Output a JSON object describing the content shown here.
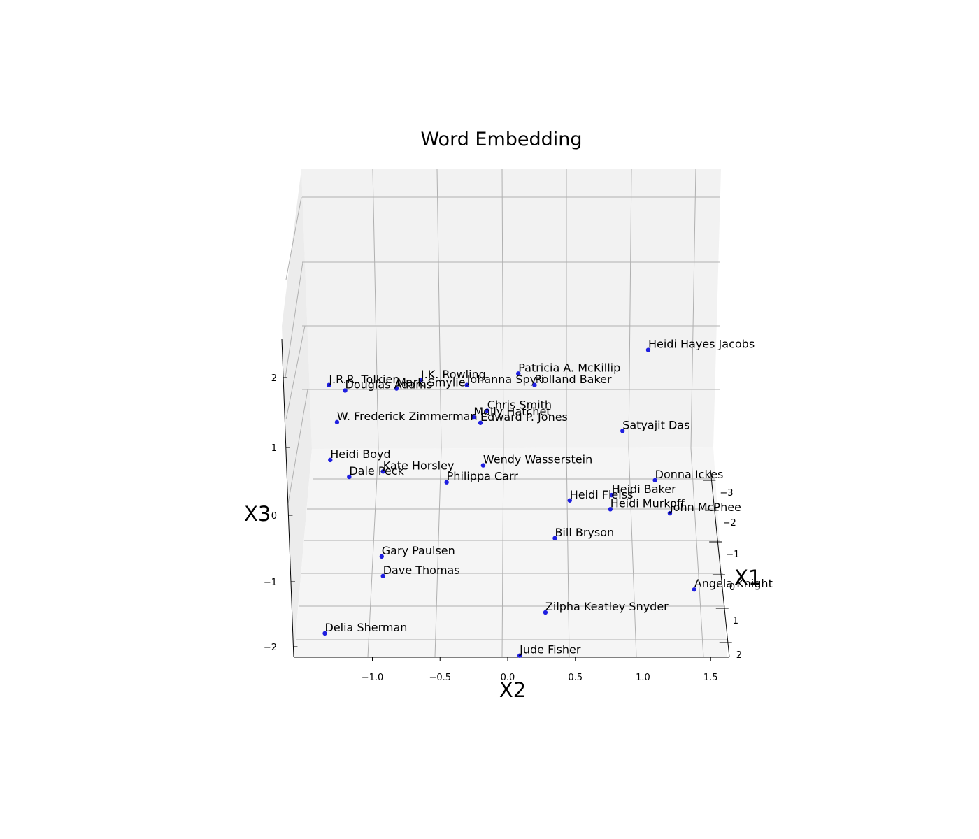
{
  "chart_data": {
    "type": "scatter",
    "title": "Word Embedding",
    "xlabel": "X1",
    "ylabel": "X2",
    "zlabel": "X3",
    "x2_ticks": [
      "−1.0",
      "−0.5",
      "0.0",
      "0.5",
      "1.0",
      "1.5"
    ],
    "x3_ticks": [
      "−2",
      "−1",
      "0",
      "1",
      "2"
    ],
    "x1_ticks": [
      "−3",
      "−2",
      "−1",
      "0",
      "1",
      "2"
    ],
    "marker_color": "#1f1fe0",
    "points": [
      {
        "label": "Heidi Hayes Jacobs",
        "x2": 1.08,
        "x3": 2.45
      },
      {
        "label": "Patricia A. McKillip",
        "x2": 0.12,
        "x3": 2.1
      },
      {
        "label": "J.K. Rowling",
        "x2": -0.6,
        "x3": 2.0
      },
      {
        "label": "Johanna Spyri",
        "x2": -0.26,
        "x3": 1.93
      },
      {
        "label": "Rolland Baker",
        "x2": 0.24,
        "x3": 1.93
      },
      {
        "label": "J.R.R. Tolkien",
        "x2": -1.28,
        "x3": 1.93
      },
      {
        "label": "Mark Smylie",
        "x2": -0.78,
        "x3": 1.88
      },
      {
        "label": "Douglas Adams",
        "x2": -1.16,
        "x3": 1.85
      },
      {
        "label": "Chris   Smith",
        "x2": -0.11,
        "x3": 1.55
      },
      {
        "label": "Molly Hatchet",
        "x2": -0.21,
        "x3": 1.45
      },
      {
        "label": "W. Frederick Zimmerman",
        "x2": -1.22,
        "x3": 1.38
      },
      {
        "label": "Edward P. Jones",
        "x2": -0.16,
        "x3": 1.37
      },
      {
        "label": "Satyajit Das",
        "x2": 0.89,
        "x3": 1.25
      },
      {
        "label": "Heidi Boyd",
        "x2": -1.27,
        "x3": 0.82
      },
      {
        "label": "Wendy Wasserstein",
        "x2": -0.14,
        "x3": 0.74
      },
      {
        "label": "Kate Horsley",
        "x2": -0.88,
        "x3": 0.65
      },
      {
        "label": "Dale Peck",
        "x2": -1.13,
        "x3": 0.57
      },
      {
        "label": "Donna Ickes",
        "x2": 1.13,
        "x3": 0.52
      },
      {
        "label": "Philippa Carr",
        "x2": -0.41,
        "x3": 0.49
      },
      {
        "label": "Heidi Baker",
        "x2": 0.81,
        "x3": 0.3
      },
      {
        "label": "Heidi Fleiss",
        "x2": 0.5,
        "x3": 0.22
      },
      {
        "label": "Heidi Murkoff",
        "x2": 0.8,
        "x3": 0.09
      },
      {
        "label": "John McPhee",
        "x2": 1.24,
        "x3": 0.03
      },
      {
        "label": "Bill Bryson",
        "x2": 0.39,
        "x3": -0.34
      },
      {
        "label": "Gary Paulsen",
        "x2": -0.89,
        "x3": -0.61
      },
      {
        "label": "Dave Thomas",
        "x2": -0.88,
        "x3": -0.9
      },
      {
        "label": "Angela Knight",
        "x2": 1.42,
        "x3": -1.1
      },
      {
        "label": "Zilpha Keatley Snyder",
        "x2": 0.32,
        "x3": -1.44
      },
      {
        "label": "Delia Sherman",
        "x2": -1.31,
        "x3": -1.75
      },
      {
        "label": "Jude Fisher",
        "x2": 0.13,
        "x3": -2.08
      }
    ]
  }
}
